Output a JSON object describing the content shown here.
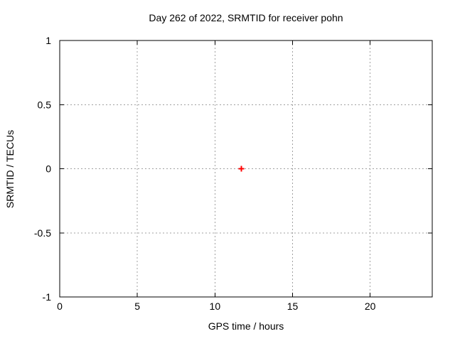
{
  "chart_data": {
    "type": "scatter",
    "title": "Day 262 of 2022, SRMTID for receiver pohn",
    "xlabel": "GPS time / hours",
    "ylabel": "SRMTID / TECUs",
    "xlim": [
      0,
      24
    ],
    "ylim": [
      -1,
      1
    ],
    "xticks": [
      0,
      5,
      10,
      15,
      20
    ],
    "yticks": [
      -1,
      -0.5,
      0,
      0.5,
      1
    ],
    "grid": true,
    "grid_style": "dotted",
    "legend": "none",
    "colors": {
      "background": "#ffffff",
      "axis": "#000000",
      "text": "#000000",
      "grid": "#a0a0a0",
      "marker": "#ff0000"
    },
    "series": [
      {
        "name": "SRMTID",
        "marker": "plus",
        "color": "#ff0000",
        "points": [
          [
            11.7,
            0.0
          ]
        ]
      }
    ]
  }
}
